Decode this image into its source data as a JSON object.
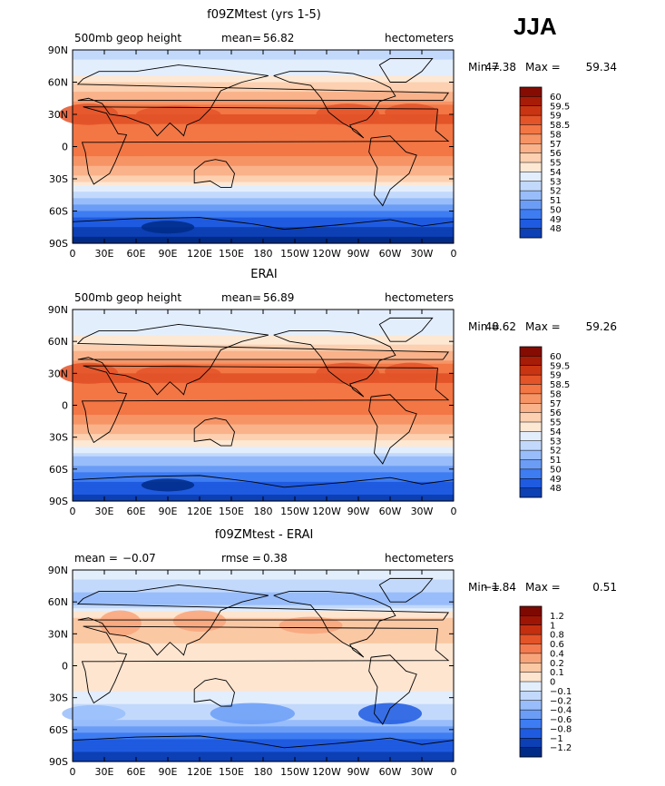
{
  "season": "JJA",
  "colors": {
    "full_field": [
      "#002b86",
      "#0d3fb5",
      "#1f5be0",
      "#3e7cf2",
      "#6b9df7",
      "#98bdfa",
      "#c2d9fc",
      "#e3eefd",
      "#fde8d4",
      "#fcd0b0",
      "#f9b28a",
      "#f69466",
      "#f37645",
      "#e35429",
      "#c93512",
      "#a71c07",
      "#850c02"
    ],
    "diff_field": [
      "#002b86",
      "#0d3fb5",
      "#1f5be0",
      "#3e7cf2",
      "#6b9df7",
      "#98bdfa",
      "#c2d9fc",
      "#e3eefd",
      "#fde5d0",
      "#fbc8a4",
      "#f8a47b",
      "#f37b4f",
      "#e35429",
      "#c42f10",
      "#9e1506",
      "#7d0902"
    ],
    "map_line": "#000000"
  },
  "chart_data": [
    {
      "type": "contour-map",
      "title": "f09ZMtest (yrs 1-5)",
      "left_label": "500mb geop height",
      "mean_label": "mean=",
      "mean_value": "56.82",
      "units": "hectometers",
      "min_label": "Min =",
      "min_value": "47.38",
      "max_label": "Max =",
      "max_value": "59.34",
      "x_ticks": [
        "0",
        "30E",
        "60E",
        "90E",
        "120E",
        "150E",
        "180",
        "150W",
        "120W",
        "90W",
        "60W",
        "30W",
        "0"
      ],
      "y_ticks": [
        "90N",
        "60N",
        "30N",
        "0",
        "30S",
        "60S",
        "90S"
      ],
      "xlim": [
        0,
        360
      ],
      "ylim": [
        -90,
        90
      ],
      "colorbar_levels": [
        "60",
        "59.5",
        "59",
        "58.5",
        "58",
        "57",
        "56",
        "55",
        "54",
        "53",
        "52",
        "51",
        "50",
        "49",
        "48"
      ],
      "zonal_profile": {
        "lat": [
          -90,
          -80,
          -70,
          -60,
          -50,
          -40,
          -30,
          -20,
          -10,
          0,
          10,
          20,
          30,
          40,
          50,
          60,
          70,
          80,
          90
        ],
        "value": [
          47.4,
          48.4,
          49.6,
          51.0,
          52.5,
          54.5,
          56.4,
          57.8,
          58.5,
          58.6,
          58.8,
          59.0,
          59.1,
          58.4,
          57.2,
          55.8,
          54.6,
          54.0,
          53.8
        ]
      }
    },
    {
      "type": "contour-map",
      "title": "ERAI",
      "left_label": "500mb geop height",
      "mean_label": "mean=",
      "mean_value": "56.89",
      "units": "hectometers",
      "min_label": "Min =",
      "min_value": "48.62",
      "max_label": "Max =",
      "max_value": "59.26",
      "x_ticks": [
        "0",
        "30E",
        "60E",
        "90E",
        "120E",
        "150E",
        "180",
        "150W",
        "120W",
        "90W",
        "60W",
        "30W",
        "0"
      ],
      "y_ticks": [
        "90N",
        "60N",
        "30N",
        "0",
        "30S",
        "60S",
        "90S"
      ],
      "xlim": [
        0,
        360
      ],
      "ylim": [
        -90,
        90
      ],
      "colorbar_levels": [
        "60",
        "59.5",
        "59",
        "58.5",
        "58",
        "57",
        "56",
        "55",
        "54",
        "53",
        "52",
        "51",
        "50",
        "49",
        "48"
      ],
      "zonal_profile": {
        "lat": [
          -90,
          -80,
          -70,
          -60,
          -50,
          -40,
          -30,
          -20,
          -10,
          0,
          10,
          20,
          30,
          40,
          50,
          60,
          70,
          80,
          90
        ],
        "value": [
          48.6,
          49.3,
          50.3,
          51.4,
          52.8,
          54.7,
          56.5,
          57.8,
          58.5,
          58.6,
          58.8,
          59.0,
          59.0,
          58.4,
          57.2,
          55.7,
          54.6,
          54.1,
          54.0
        ]
      }
    },
    {
      "type": "contour-map",
      "title": "f09ZMtest - ERAI",
      "left_label": "mean =",
      "mean_label": "rmse =",
      "mean_value": "0.38",
      "left_value": "−0.07",
      "units": "hectometers",
      "min_label": "Min =",
      "min_value": "−1.84",
      "max_label": "Max =",
      "max_value": "0.51",
      "x_ticks": [
        "0",
        "30E",
        "60E",
        "90E",
        "120E",
        "150E",
        "180",
        "150W",
        "120W",
        "90W",
        "60W",
        "30W",
        "0"
      ],
      "y_ticks": [
        "90N",
        "60N",
        "30N",
        "0",
        "30S",
        "60S",
        "90S"
      ],
      "xlim": [
        0,
        360
      ],
      "ylim": [
        -90,
        90
      ],
      "colorbar_levels": [
        "1.2",
        "1",
        "0.8",
        "0.6",
        "0.4",
        "0.2",
        "0.1",
        "0",
        "−0.1",
        "−0.2",
        "−0.4",
        "−0.6",
        "−0.8",
        "−1",
        "−1.2"
      ],
      "zonal_profile": {
        "lat": [
          -90,
          -80,
          -70,
          -60,
          -50,
          -40,
          -30,
          -20,
          -10,
          0,
          10,
          20,
          30,
          40,
          50,
          60,
          70,
          80,
          90
        ],
        "value": [
          -1.2,
          -1.0,
          -0.8,
          -0.5,
          -0.2,
          -0.15,
          -0.05,
          0.02,
          0.05,
          0.05,
          0.05,
          0.1,
          0.15,
          0.2,
          0.0,
          -0.3,
          -0.2,
          -0.1,
          -0.1
        ]
      }
    }
  ]
}
